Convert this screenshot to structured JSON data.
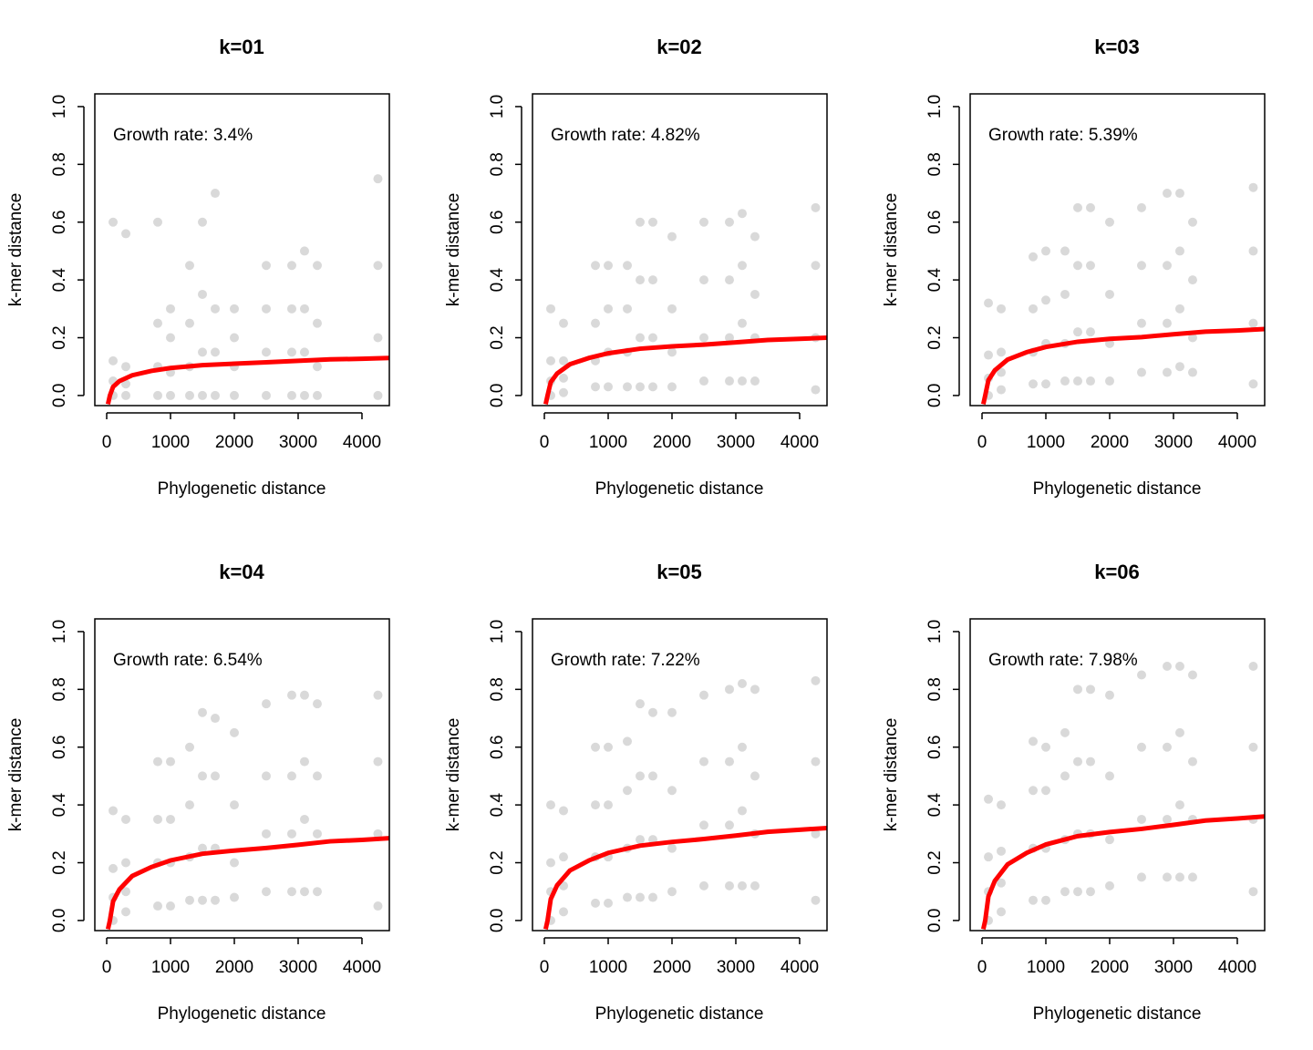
{
  "chart_data": [
    {
      "type": "scatter",
      "title": "k=01",
      "x_label": "Phylogenetic distance",
      "y_label": "k-mer distance",
      "annotation": "Growth rate: 3.4%",
      "xlim": [
        -186,
        4429
      ],
      "ylim": [
        -0.035,
        1.044
      ],
      "xticks": [
        0,
        1000,
        2000,
        3000,
        4000
      ],
      "yticks": [
        {
          "value": 0,
          "label": "0.0"
        },
        0.2,
        0.4,
        0.6,
        0.8,
        {
          "value": 1,
          "label": "1.0"
        }
      ],
      "points": {
        "color": "#000000",
        "x": [
          100,
          100,
          100,
          100,
          300,
          300,
          300,
          300,
          800,
          800,
          800,
          800,
          1000,
          1000,
          1000,
          1000,
          1300,
          1300,
          1300,
          1300,
          1500,
          1500,
          1500,
          1500,
          1700,
          1700,
          1700,
          1700,
          2000,
          2000,
          2000,
          2000,
          2500,
          2500,
          2500,
          2500,
          2900,
          2900,
          2900,
          2900,
          3100,
          3100,
          3100,
          3100,
          3300,
          3300,
          3300,
          3300,
          4250,
          4250,
          4250,
          4250
        ],
        "y": [
          0,
          0.05,
          0.12,
          0.6,
          0,
          0.04,
          0.1,
          0.56,
          0,
          0.1,
          0.25,
          0.6,
          0,
          0.08,
          0.2,
          0.3,
          0,
          0.1,
          0.25,
          0.45,
          0,
          0.15,
          0.35,
          0.6,
          0,
          0.15,
          0.3,
          0.7,
          0,
          0.1,
          0.2,
          0.3,
          0,
          0.15,
          0.3,
          0.45,
          0,
          0.15,
          0.3,
          0.45,
          0,
          0.15,
          0.3,
          0.5,
          0,
          0.1,
          0.25,
          0.45,
          0,
          0.2,
          0.45,
          0.75
        ]
      },
      "fit": {
        "color": "#ff0000",
        "x": [
          20,
          50,
          100,
          200,
          400,
          700,
          1000,
          1500,
          2000,
          2500,
          3000,
          3500,
          4000,
          4429
        ],
        "y": [
          -0.03,
          0,
          0.03,
          0.05,
          0.07,
          0.085,
          0.095,
          0.105,
          0.11,
          0.115,
          0.12,
          0.125,
          0.127,
          0.13
        ]
      }
    },
    {
      "type": "scatter",
      "title": "k=02",
      "x_label": "Phylogenetic distance",
      "y_label": "k-mer distance",
      "annotation": "Growth rate: 4.82%",
      "xlim": [
        -186,
        4429
      ],
      "ylim": [
        -0.035,
        1.044
      ],
      "xticks": [
        0,
        1000,
        2000,
        3000,
        4000
      ],
      "yticks": [
        {
          "value": 0,
          "label": "0.0"
        },
        0.2,
        0.4,
        0.6,
        0.8,
        {
          "value": 1,
          "label": "1.0"
        }
      ],
      "points": {
        "color": "#000000",
        "x": [
          100,
          100,
          100,
          100,
          300,
          300,
          300,
          300,
          800,
          800,
          800,
          800,
          1000,
          1000,
          1000,
          1000,
          1300,
          1300,
          1300,
          1300,
          1500,
          1500,
          1500,
          1500,
          1700,
          1700,
          1700,
          1700,
          2000,
          2000,
          2000,
          2000,
          2500,
          2500,
          2500,
          2500,
          2900,
          2900,
          2900,
          2900,
          3100,
          3100,
          3100,
          3100,
          3300,
          3300,
          3300,
          3300,
          4250,
          4250,
          4250,
          4250
        ],
        "y": [
          0,
          0.05,
          0.12,
          0.3,
          0.01,
          0.06,
          0.12,
          0.25,
          0.03,
          0.12,
          0.25,
          0.45,
          0.03,
          0.15,
          0.3,
          0.45,
          0.03,
          0.15,
          0.3,
          0.45,
          0.03,
          0.2,
          0.4,
          0.6,
          0.03,
          0.2,
          0.4,
          0.6,
          0.03,
          0.15,
          0.3,
          0.55,
          0.05,
          0.2,
          0.4,
          0.6,
          0.05,
          0.2,
          0.4,
          0.6,
          0.05,
          0.25,
          0.45,
          0.63,
          0.05,
          0.2,
          0.35,
          0.55,
          0.02,
          0.2,
          0.45,
          0.65
        ]
      },
      "fit": {
        "color": "#ff0000",
        "x": [
          20,
          50,
          100,
          200,
          400,
          700,
          1000,
          1500,
          2000,
          2500,
          3000,
          3500,
          4000,
          4429
        ],
        "y": [
          -0.03,
          0,
          0.046,
          0.076,
          0.108,
          0.13,
          0.146,
          0.162,
          0.17,
          0.176,
          0.184,
          0.192,
          0.196,
          0.2
        ]
      }
    },
    {
      "type": "scatter",
      "title": "k=03",
      "x_label": "Phylogenetic distance",
      "y_label": "k-mer distance",
      "annotation": "Growth rate: 5.39%",
      "xlim": [
        -186,
        4429
      ],
      "ylim": [
        -0.035,
        1.044
      ],
      "xticks": [
        0,
        1000,
        2000,
        3000,
        4000
      ],
      "yticks": [
        {
          "value": 0,
          "label": "0.0"
        },
        0.2,
        0.4,
        0.6,
        0.8,
        {
          "value": 1,
          "label": "1.0"
        }
      ],
      "points": {
        "color": "#000000",
        "x": [
          100,
          100,
          100,
          100,
          300,
          300,
          300,
          300,
          800,
          800,
          800,
          800,
          1000,
          1000,
          1000,
          1000,
          1300,
          1300,
          1300,
          1300,
          1500,
          1500,
          1500,
          1500,
          1700,
          1700,
          1700,
          1700,
          2000,
          2000,
          2000,
          2000,
          2500,
          2500,
          2500,
          2500,
          2900,
          2900,
          2900,
          2900,
          3100,
          3100,
          3100,
          3100,
          3300,
          3300,
          3300,
          3300,
          4250,
          4250,
          4250,
          4250
        ],
        "y": [
          0,
          0.06,
          0.14,
          0.32,
          0.02,
          0.08,
          0.15,
          0.3,
          0.04,
          0.15,
          0.3,
          0.48,
          0.04,
          0.18,
          0.33,
          0.5,
          0.05,
          0.18,
          0.35,
          0.5,
          0.05,
          0.22,
          0.45,
          0.65,
          0.05,
          0.22,
          0.45,
          0.65,
          0.05,
          0.18,
          0.35,
          0.6,
          0.08,
          0.25,
          0.45,
          0.65,
          0.08,
          0.25,
          0.45,
          0.7,
          0.1,
          0.3,
          0.5,
          0.7,
          0.08,
          0.2,
          0.4,
          0.6,
          0.04,
          0.25,
          0.5,
          0.72
        ]
      },
      "fit": {
        "color": "#ff0000",
        "x": [
          20,
          50,
          100,
          200,
          400,
          700,
          1000,
          1500,
          2000,
          2500,
          3000,
          3500,
          4000,
          4429
        ],
        "y": [
          -0.03,
          0,
          0.053,
          0.087,
          0.124,
          0.15,
          0.168,
          0.186,
          0.196,
          0.202,
          0.212,
          0.221,
          0.225,
          0.23
        ]
      }
    },
    {
      "type": "scatter",
      "title": "k=04",
      "x_label": "Phylogenetic distance",
      "y_label": "k-mer distance",
      "annotation": "Growth rate: 6.54%",
      "xlim": [
        -186,
        4429
      ],
      "ylim": [
        -0.035,
        1.044
      ],
      "xticks": [
        0,
        1000,
        2000,
        3000,
        4000
      ],
      "yticks": [
        {
          "value": 0,
          "label": "0.0"
        },
        0.2,
        0.4,
        0.6,
        0.8,
        {
          "value": 1,
          "label": "1.0"
        }
      ],
      "points": {
        "color": "#000000",
        "x": [
          100,
          100,
          100,
          100,
          300,
          300,
          300,
          300,
          800,
          800,
          800,
          800,
          1000,
          1000,
          1000,
          1000,
          1300,
          1300,
          1300,
          1300,
          1500,
          1500,
          1500,
          1500,
          1700,
          1700,
          1700,
          1700,
          2000,
          2000,
          2000,
          2000,
          2500,
          2500,
          2500,
          2500,
          2900,
          2900,
          2900,
          2900,
          3100,
          3100,
          3100,
          3100,
          3300,
          3300,
          3300,
          3300,
          4250,
          4250,
          4250,
          4250
        ],
        "y": [
          0,
          0.08,
          0.18,
          0.38,
          0.03,
          0.1,
          0.2,
          0.35,
          0.05,
          0.2,
          0.35,
          0.55,
          0.05,
          0.2,
          0.35,
          0.55,
          0.07,
          0.22,
          0.4,
          0.6,
          0.07,
          0.25,
          0.5,
          0.72,
          0.07,
          0.25,
          0.5,
          0.7,
          0.08,
          0.2,
          0.4,
          0.65,
          0.1,
          0.3,
          0.5,
          0.75,
          0.1,
          0.3,
          0.5,
          0.78,
          0.1,
          0.35,
          0.55,
          0.78,
          0.1,
          0.3,
          0.5,
          0.75,
          0.05,
          0.3,
          0.55,
          0.78
        ]
      },
      "fit": {
        "color": "#ff0000",
        "x": [
          20,
          50,
          100,
          200,
          400,
          700,
          1000,
          1500,
          2000,
          2500,
          3000,
          3500,
          4000,
          4429
        ],
        "y": [
          -0.03,
          0,
          0.066,
          0.108,
          0.154,
          0.185,
          0.208,
          0.231,
          0.242,
          0.251,
          0.262,
          0.274,
          0.279,
          0.285
        ]
      }
    },
    {
      "type": "scatter",
      "title": "k=05",
      "x_label": "Phylogenetic distance",
      "y_label": "k-mer distance",
      "annotation": "Growth rate: 7.22%",
      "xlim": [
        -186,
        4429
      ],
      "ylim": [
        -0.035,
        1.044
      ],
      "xticks": [
        0,
        1000,
        2000,
        3000,
        4000
      ],
      "yticks": [
        {
          "value": 0,
          "label": "0.0"
        },
        0.2,
        0.4,
        0.6,
        0.8,
        {
          "value": 1,
          "label": "1.0"
        }
      ],
      "points": {
        "color": "#000000",
        "x": [
          100,
          100,
          100,
          100,
          300,
          300,
          300,
          300,
          800,
          800,
          800,
          800,
          1000,
          1000,
          1000,
          1000,
          1300,
          1300,
          1300,
          1300,
          1500,
          1500,
          1500,
          1500,
          1700,
          1700,
          1700,
          1700,
          2000,
          2000,
          2000,
          2000,
          2500,
          2500,
          2500,
          2500,
          2900,
          2900,
          2900,
          2900,
          3100,
          3100,
          3100,
          3100,
          3300,
          3300,
          3300,
          3300,
          4250,
          4250,
          4250,
          4250
        ],
        "y": [
          0,
          0.1,
          0.2,
          0.4,
          0.03,
          0.12,
          0.22,
          0.38,
          0.06,
          0.22,
          0.4,
          0.6,
          0.06,
          0.22,
          0.4,
          0.6,
          0.08,
          0.25,
          0.45,
          0.62,
          0.08,
          0.28,
          0.5,
          0.75,
          0.08,
          0.28,
          0.5,
          0.72,
          0.1,
          0.25,
          0.45,
          0.72,
          0.12,
          0.33,
          0.55,
          0.78,
          0.12,
          0.33,
          0.55,
          0.8,
          0.12,
          0.38,
          0.6,
          0.82,
          0.12,
          0.3,
          0.5,
          0.8,
          0.07,
          0.3,
          0.55,
          0.83
        ]
      },
      "fit": {
        "color": "#ff0000",
        "x": [
          20,
          50,
          100,
          200,
          400,
          700,
          1000,
          1500,
          2000,
          2500,
          3000,
          3500,
          4000,
          4429
        ],
        "y": [
          -0.03,
          0,
          0.074,
          0.122,
          0.173,
          0.208,
          0.234,
          0.259,
          0.272,
          0.282,
          0.294,
          0.307,
          0.314,
          0.32
        ]
      }
    },
    {
      "type": "scatter",
      "title": "k=06",
      "x_label": "Phylogenetic distance",
      "y_label": "k-mer distance",
      "annotation": "Growth rate: 7.98%",
      "xlim": [
        -186,
        4429
      ],
      "ylim": [
        -0.035,
        1.044
      ],
      "xticks": [
        0,
        1000,
        2000,
        3000,
        4000
      ],
      "yticks": [
        {
          "value": 0,
          "label": "0.0"
        },
        0.2,
        0.4,
        0.6,
        0.8,
        {
          "value": 1,
          "label": "1.0"
        }
      ],
      "points": {
        "color": "#000000",
        "x": [
          100,
          100,
          100,
          100,
          300,
          300,
          300,
          300,
          800,
          800,
          800,
          800,
          1000,
          1000,
          1000,
          1000,
          1300,
          1300,
          1300,
          1300,
          1500,
          1500,
          1500,
          1500,
          1700,
          1700,
          1700,
          1700,
          2000,
          2000,
          2000,
          2000,
          2500,
          2500,
          2500,
          2500,
          2900,
          2900,
          2900,
          2900,
          3100,
          3100,
          3100,
          3100,
          3300,
          3300,
          3300,
          3300,
          4250,
          4250,
          4250,
          4250
        ],
        "y": [
          0,
          0.1,
          0.22,
          0.42,
          0.03,
          0.13,
          0.24,
          0.4,
          0.07,
          0.25,
          0.45,
          0.62,
          0.07,
          0.25,
          0.45,
          0.6,
          0.1,
          0.28,
          0.5,
          0.65,
          0.1,
          0.3,
          0.55,
          0.8,
          0.1,
          0.3,
          0.55,
          0.8,
          0.12,
          0.28,
          0.5,
          0.78,
          0.15,
          0.35,
          0.6,
          0.85,
          0.15,
          0.35,
          0.6,
          0.88,
          0.15,
          0.4,
          0.65,
          0.88,
          0.15,
          0.35,
          0.55,
          0.85,
          0.1,
          0.35,
          0.6,
          0.88
        ]
      },
      "fit": {
        "color": "#ff0000",
        "x": [
          20,
          50,
          100,
          200,
          400,
          700,
          1000,
          1500,
          2000,
          2500,
          3000,
          3500,
          4000,
          4429
        ],
        "y": [
          -0.03,
          0,
          0.083,
          0.137,
          0.194,
          0.234,
          0.263,
          0.292,
          0.306,
          0.317,
          0.331,
          0.346,
          0.353,
          0.36
        ]
      }
    }
  ]
}
